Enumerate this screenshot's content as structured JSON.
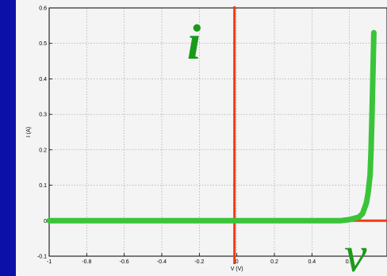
{
  "theme": {
    "background": "#0a10a8",
    "panel": "#f4f4f4",
    "curve": "#3ac43a",
    "axis_highlight": "#f03a14",
    "overlay_label": "#1a9a1a",
    "grid": "#9a9a9a"
  },
  "overlay": {
    "current_symbol": "i",
    "voltage_symbol": "v"
  },
  "chart_data": {
    "type": "line",
    "title": "",
    "xlabel": "V (V)",
    "ylabel": "I (A)",
    "xlim": [
      -1,
      0.8
    ],
    "ylim": [
      -0.1,
      0.6
    ],
    "xticks": [
      -1,
      -0.8,
      -0.6,
      -0.4,
      -0.2,
      0,
      0.2,
      0.4,
      0.6
    ],
    "xtick_labels": [
      "-1",
      "-0.8",
      "-0.6",
      "-0.4",
      "-0.2",
      "0",
      "0.2",
      "0.4",
      "0.6"
    ],
    "yticks": [
      -0.1,
      0,
      0.1,
      0.2,
      0.3,
      0.4,
      0.5,
      0.6
    ],
    "ytick_labels": [
      "-0.1",
      "0",
      "0.1",
      "0.2",
      "0.3",
      "0.4",
      "0.5",
      "0.6"
    ],
    "grid": true,
    "series": [
      {
        "x": [
          -1,
          -0.8,
          -0.6,
          -0.4,
          -0.2,
          0,
          0.2,
          0.4,
          0.55,
          0.6,
          0.65,
          0.67,
          0.69,
          0.7,
          0.71,
          0.715,
          0.72,
          0.725,
          0.73
        ],
        "y": [
          0,
          0,
          0,
          0,
          0,
          0,
          0,
          0,
          0,
          0.003,
          0.01,
          0.02,
          0.05,
          0.08,
          0.13,
          0.2,
          0.3,
          0.42,
          0.53
        ]
      }
    ]
  }
}
